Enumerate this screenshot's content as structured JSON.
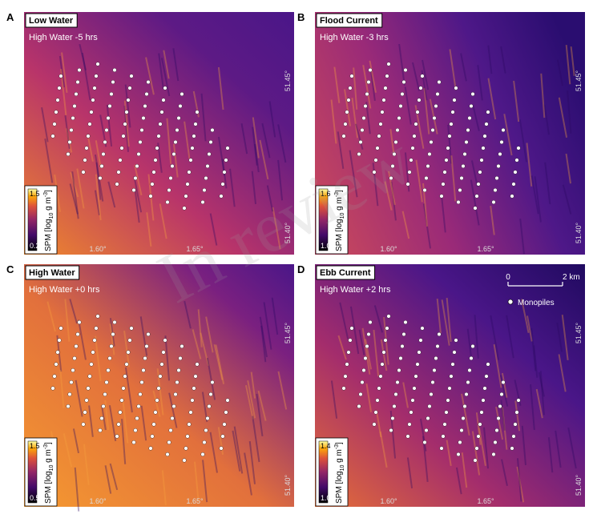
{
  "panels": [
    {
      "letter": "A",
      "title": "Low Water",
      "subtitle": "High Water -5 hrs",
      "colorbar_max": "1.5",
      "colorbar_min": "0.2"
    },
    {
      "letter": "B",
      "title": "Flood Current",
      "subtitle": "High Water -3 hrs",
      "colorbar_max": "1.6",
      "colorbar_min": "1.0"
    },
    {
      "letter": "C",
      "title": "High Water",
      "subtitle": "High Water +0 hrs",
      "colorbar_max": "1.5",
      "colorbar_min": "0.5"
    },
    {
      "letter": "D",
      "title": "Ebb Current",
      "subtitle": "High Water +2 hrs",
      "colorbar_max": "1.4",
      "colorbar_min": "1.0"
    }
  ],
  "colorbar_label": {
    "prefix": "SPM [log",
    "sub": "10",
    "mid": " g m",
    "sup": "-3",
    "suffix": "]"
  },
  "x_ticks": [
    "1.60°",
    "1.65°"
  ],
  "y_ticks": [
    "51.45°",
    "51.40°"
  ],
  "scale_bar": {
    "start": "0",
    "end": "2 km"
  },
  "legend": "Monopiles",
  "watermark": "In review"
}
